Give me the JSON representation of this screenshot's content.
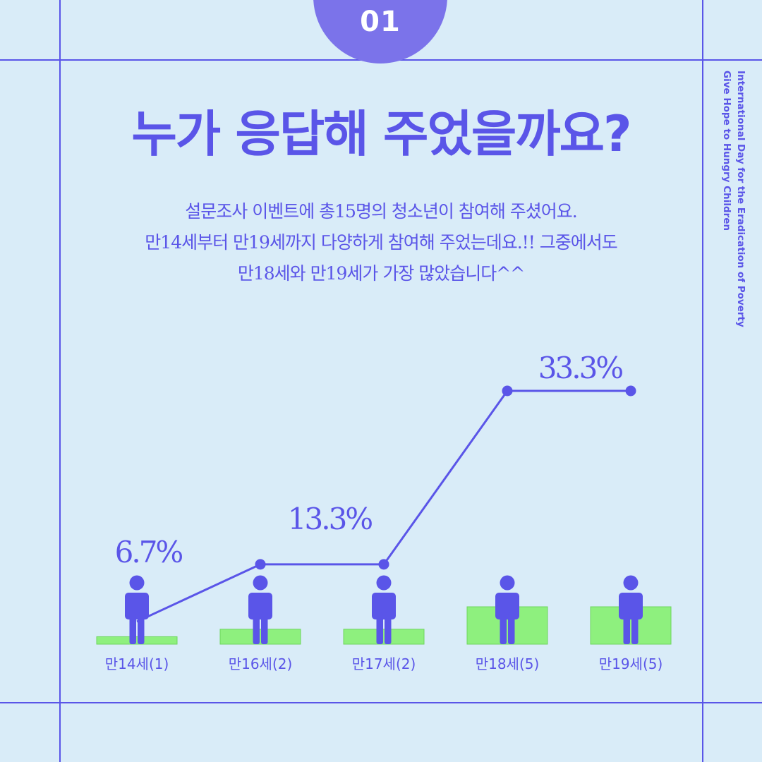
{
  "badge": "01",
  "title": "누가 응답해 주었을까요?",
  "description": [
    "설문조사 이벤트에 총15명의 청소년이 참여해 주셨어요.",
    "만14세부터 만19세까지 다양하게 참여해 주었는데요.!! 그중에서도",
    "만18세와 만19세가 가장 많았습니다^^"
  ],
  "side_text": [
    "International Day for the Eradication of Poverty",
    "Give Hope to Hungry Children"
  ],
  "colors": {
    "background": "#d9ecf8",
    "accent": "#5a55e8",
    "badge": "#7b73ea",
    "bar": "#8ef07e"
  },
  "chart_data": {
    "type": "line",
    "categories": [
      "만14세(1)",
      "만16세(2)",
      "만17세(2)",
      "만18세(5)",
      "만19세(5)"
    ],
    "counts": [
      1,
      2,
      2,
      5,
      5
    ],
    "values": [
      6.7,
      13.3,
      13.3,
      33.3,
      33.3
    ],
    "data_labels": [
      "6.7%",
      "13.3%",
      "",
      "",
      "33.3%"
    ],
    "title": "",
    "xlabel": "",
    "ylabel": "",
    "icon": "person-icon"
  }
}
